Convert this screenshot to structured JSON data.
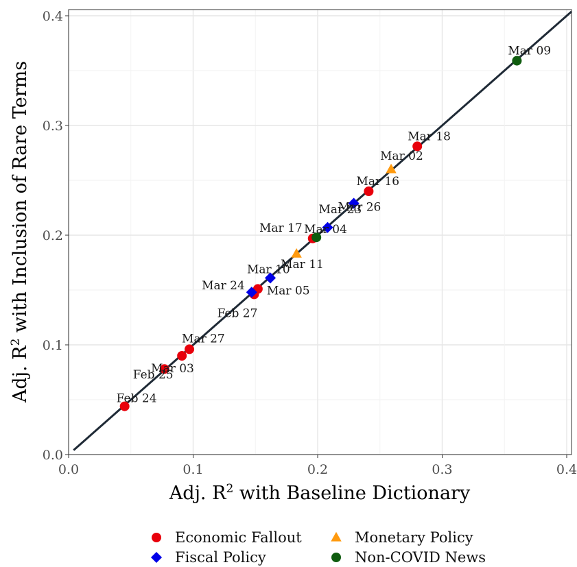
{
  "chart_data": {
    "type": "scatter",
    "xlabel": "Adj. R² with Baseline Dictionary",
    "ylabel": "Adj. R² with Inclusion of Rare Terms",
    "xlim": [
      0,
      0.4
    ],
    "ylim": [
      0,
      0.4
    ],
    "x_ticks": [
      "0.0",
      "0.1",
      "0.2",
      "0.3",
      "0.4"
    ],
    "y_ticks": [
      "0.0",
      "0.1",
      "0.2",
      "0.3",
      "0.4"
    ],
    "grid": true,
    "reference_line": "y = x",
    "legend_position": "bottom",
    "series": [
      {
        "name": "Economic Fallout",
        "color": "#e8000b",
        "shape": "circle",
        "points": [
          {
            "label": "Feb 24",
            "x": 0.045,
            "y": 0.044
          },
          {
            "label": "Feb 25",
            "x": 0.077,
            "y": 0.078
          },
          {
            "label": "Mar 03",
            "x": 0.091,
            "y": 0.09
          },
          {
            "label": "Mar 27",
            "x": 0.097,
            "y": 0.096
          },
          {
            "label": "Feb 27",
            "x": 0.149,
            "y": 0.146
          },
          {
            "label": "Mar 05",
            "x": 0.152,
            "y": 0.151
          },
          {
            "label": "Mar 17",
            "x": 0.196,
            "y": 0.197
          },
          {
            "label": "Mar 16",
            "x": 0.241,
            "y": 0.24
          },
          {
            "label": "Mar 18",
            "x": 0.28,
            "y": 0.281
          }
        ]
      },
      {
        "name": "Monetary Policy",
        "color": "#ff9a0e",
        "shape": "triangle",
        "points": [
          {
            "label": "Mar 11",
            "x": 0.183,
            "y": 0.183
          },
          {
            "label": "Mar 02",
            "x": 0.259,
            "y": 0.26
          }
        ]
      },
      {
        "name": "Fiscal Policy",
        "color": "#0000e8",
        "shape": "diamond",
        "points": [
          {
            "label": "Mar 24",
            "x": 0.147,
            "y": 0.148
          },
          {
            "label": "Mar 10",
            "x": 0.162,
            "y": 0.161
          },
          {
            "label": "Mar 23",
            "x": 0.208,
            "y": 0.207
          },
          {
            "label": "Mar 26",
            "x": 0.229,
            "y": 0.229
          }
        ]
      },
      {
        "name": "Non-COVID News",
        "color": "#0f5c0f",
        "shape": "circle",
        "points": [
          {
            "label": "Mar 04",
            "x": 0.199,
            "y": 0.198
          },
          {
            "label": "Mar 09",
            "x": 0.36,
            "y": 0.359
          }
        ]
      }
    ]
  }
}
